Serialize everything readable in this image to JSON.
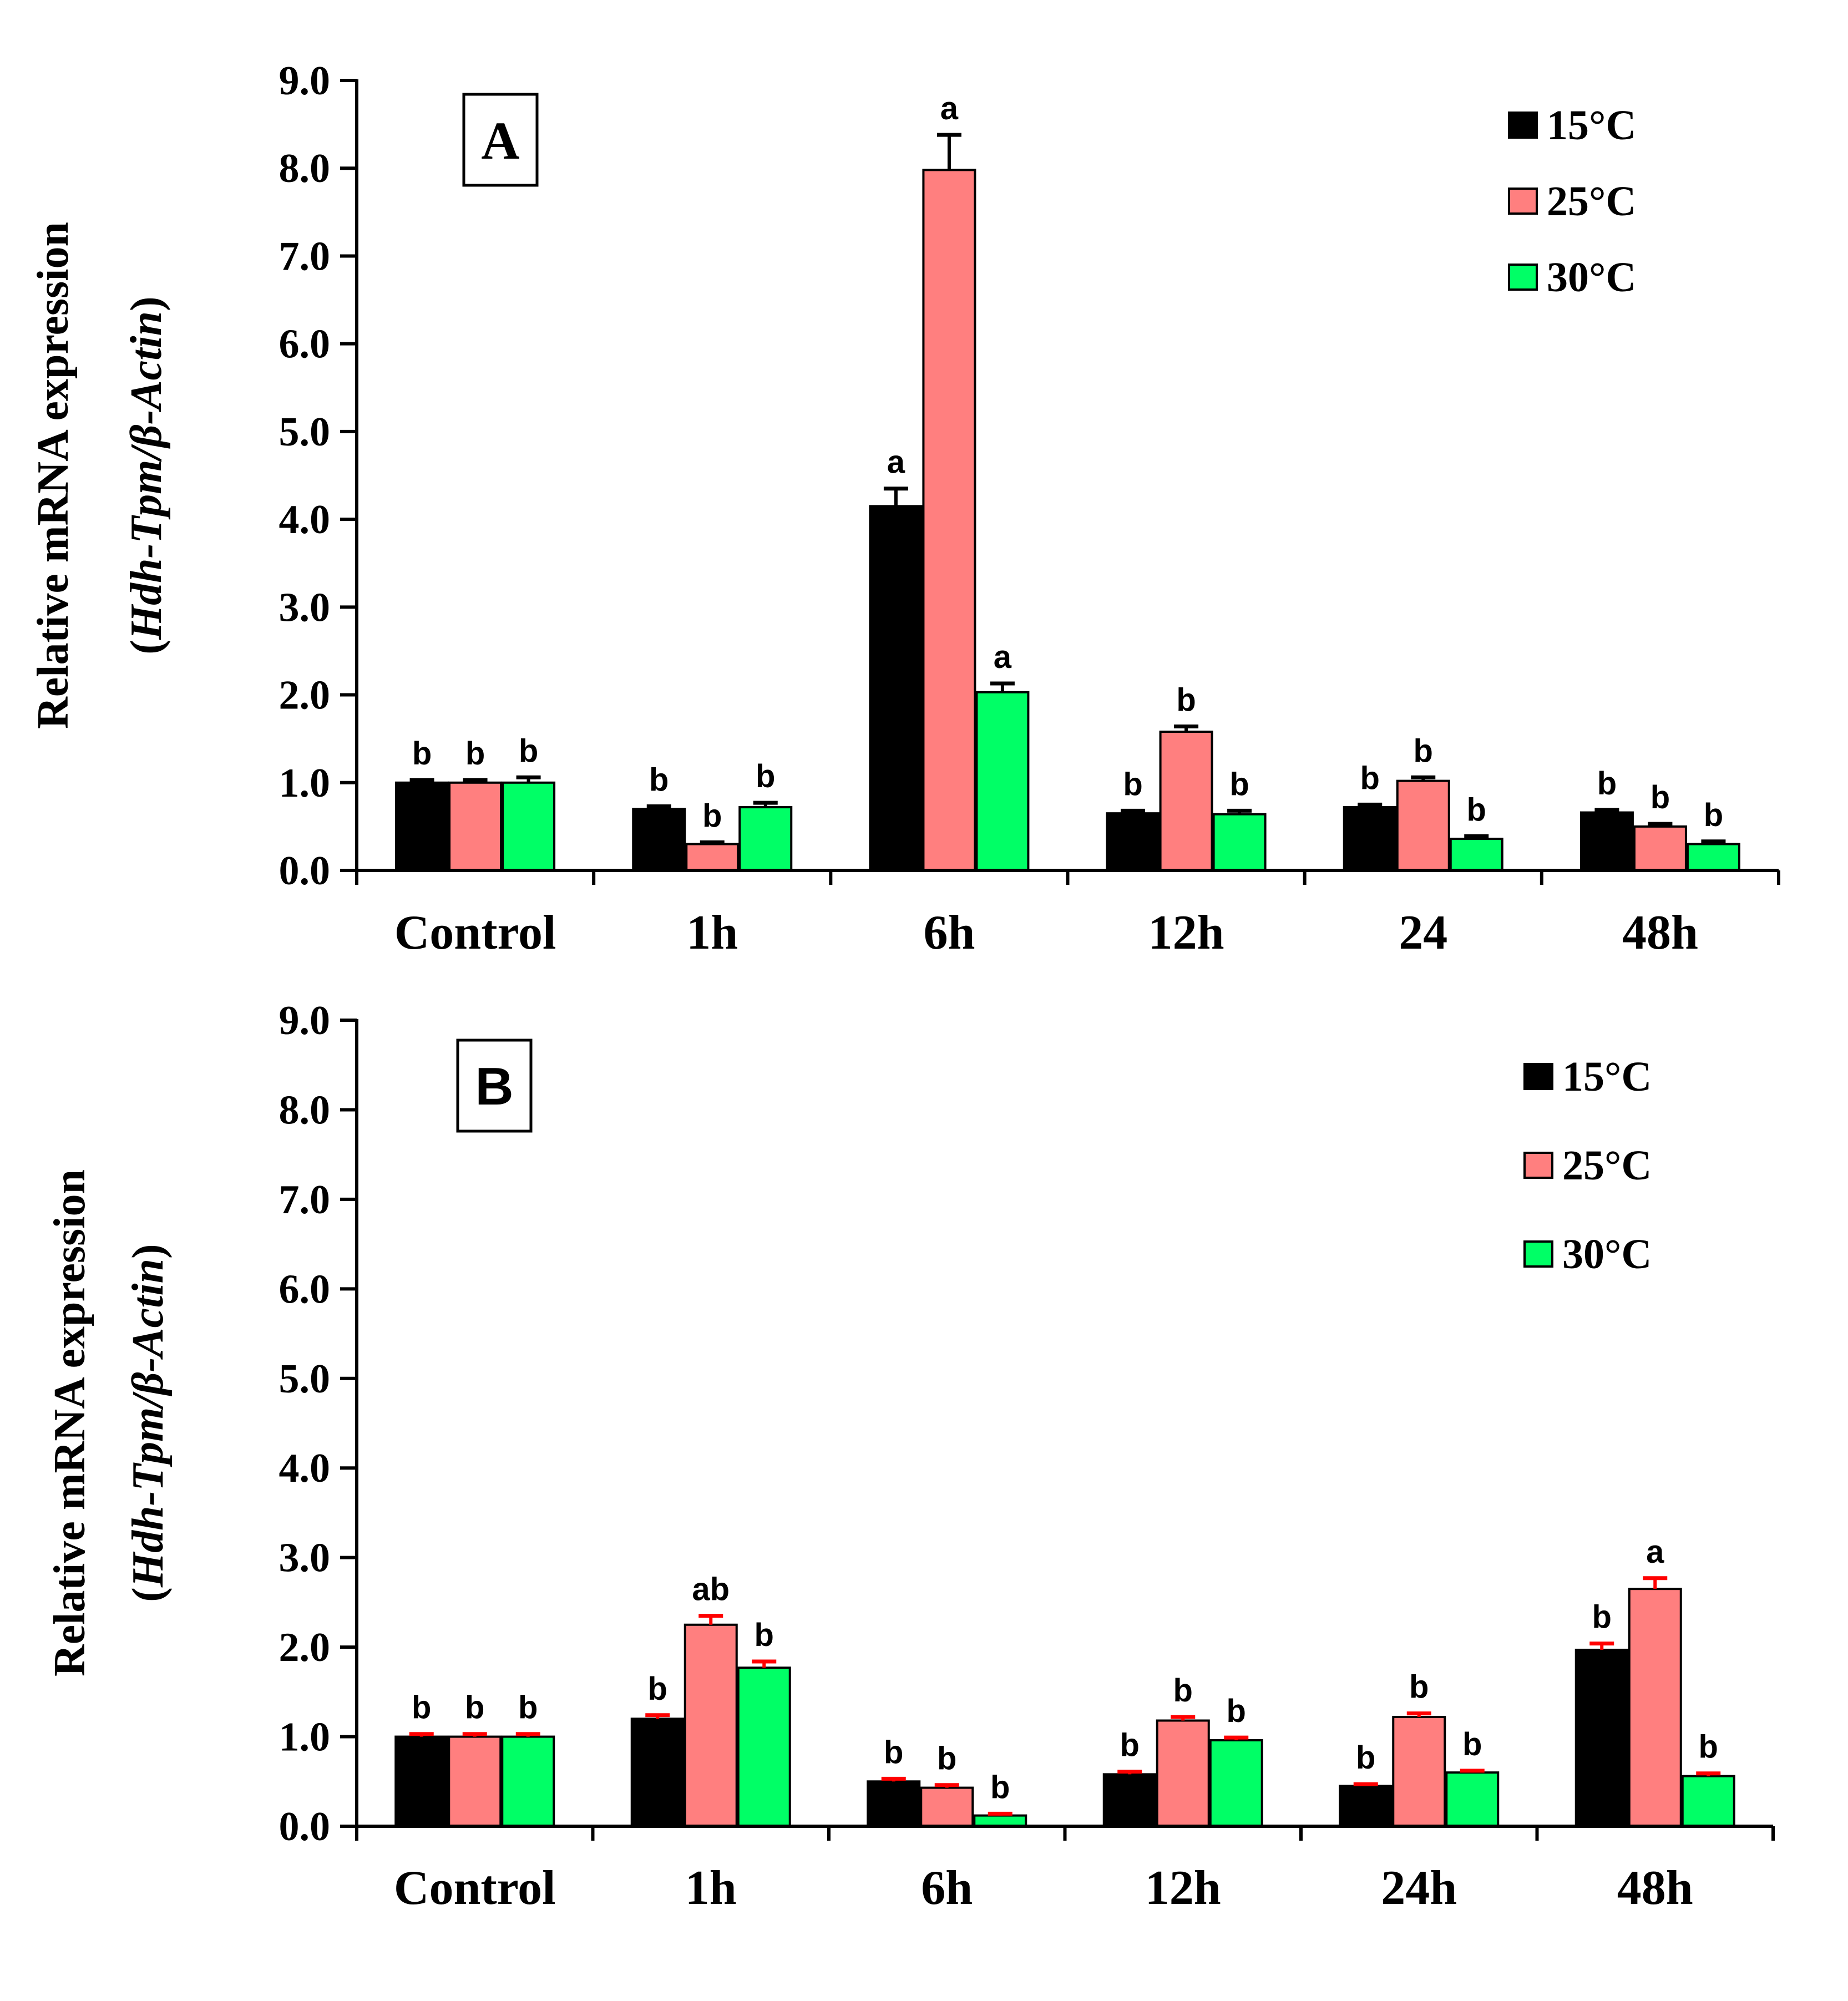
{
  "colors": {
    "15°C": "#000000",
    "25°C": "#FF7F7F",
    "30°C": "#00FF66",
    "errorbar_A": "#000000",
    "errorbar_B": "#FF0000"
  },
  "chart_data": [
    {
      "type": "bar",
      "panel": "A",
      "ylabel": "Relative mRNA expression",
      "ylabel_line2": {
        "prefix": "(",
        "gene": "Hdh-Tpm/β-Actin",
        "suffix": ")"
      },
      "ylim": [
        0,
        9
      ],
      "yticks": [
        "0.0",
        "1.0",
        "2.0",
        "3.0",
        "4.0",
        "5.0",
        "6.0",
        "7.0",
        "8.0",
        "9.0"
      ],
      "categories": [
        "Control",
        "1h",
        "6h",
        "12h",
        "24",
        "48h"
      ],
      "legend": [
        "15°C",
        "25°C",
        "30°C"
      ],
      "legend_position": "top-right",
      "series": [
        {
          "name": "15°C",
          "values": [
            1.0,
            0.7,
            4.15,
            0.65,
            0.72,
            0.66
          ],
          "errors": [
            0.03,
            0.03,
            0.2,
            0.03,
            0.03,
            0.03
          ],
          "labels": [
            "b",
            "b",
            "a",
            "b",
            "b",
            "b"
          ]
        },
        {
          "name": "25°C",
          "values": [
            1.0,
            0.3,
            7.98,
            1.58,
            1.02,
            0.5
          ],
          "errors": [
            0.03,
            0.02,
            0.4,
            0.06,
            0.04,
            0.03
          ],
          "labels": [
            "b",
            "b",
            "a",
            "b",
            "b",
            "b"
          ]
        },
        {
          "name": "30°C",
          "values": [
            1.0,
            0.72,
            2.03,
            0.64,
            0.36,
            0.3
          ],
          "errors": [
            0.06,
            0.05,
            0.1,
            0.04,
            0.03,
            0.03
          ],
          "labels": [
            "b",
            "b",
            "a",
            "b",
            "b",
            "b"
          ]
        }
      ]
    },
    {
      "type": "bar",
      "panel": "B",
      "ylabel": "Relative mRNA expression",
      "ylabel_line2": {
        "prefix": "(",
        "gene": "Hdh-Tpm/β-Actin",
        "suffix": ")"
      },
      "ylim": [
        0,
        9
      ],
      "yticks": [
        "0.0",
        "1.0",
        "2.0",
        "3.0",
        "4.0",
        "5.0",
        "6.0",
        "7.0",
        "8.0",
        "9.0"
      ],
      "categories": [
        "Control",
        "1h",
        "6h",
        "12h",
        "24h",
        "48h"
      ],
      "legend": [
        "15°C",
        "25°C",
        "30°C"
      ],
      "legend_position": "top-right",
      "series": [
        {
          "name": "15°C",
          "values": [
            1.0,
            1.2,
            0.5,
            0.58,
            0.45,
            1.97
          ],
          "errors": [
            0.03,
            0.04,
            0.03,
            0.03,
            0.02,
            0.07
          ],
          "labels": [
            "b",
            "b",
            "b",
            "b",
            "b",
            "b"
          ]
        },
        {
          "name": "25°C",
          "values": [
            1.0,
            2.25,
            0.43,
            1.18,
            1.22,
            2.65
          ],
          "errors": [
            0.03,
            0.1,
            0.03,
            0.04,
            0.04,
            0.12
          ],
          "labels": [
            "b",
            "ab",
            "b",
            "b",
            "b",
            "a"
          ]
        },
        {
          "name": "30°C",
          "values": [
            1.0,
            1.77,
            0.12,
            0.96,
            0.6,
            0.56
          ],
          "errors": [
            0.03,
            0.07,
            0.02,
            0.03,
            0.02,
            0.03
          ],
          "labels": [
            "b",
            "b",
            "b",
            "b",
            "b",
            "b"
          ]
        }
      ]
    }
  ]
}
